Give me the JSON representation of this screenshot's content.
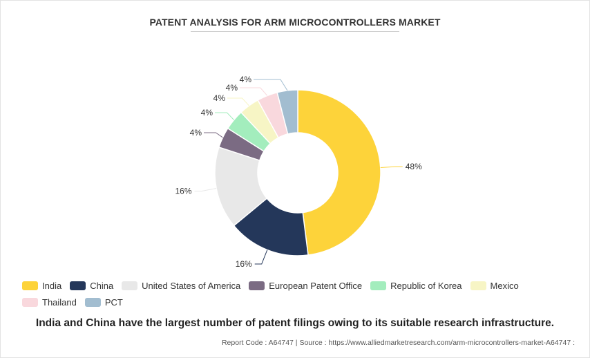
{
  "title": "PATENT ANALYSIS FOR ARM MICROCONTROLLERS MARKET",
  "chart_data": {
    "type": "pie",
    "donut": true,
    "categories": [
      "India",
      "China",
      "United States of America",
      "European Patent Office",
      "Republic of Korea",
      "Mexico",
      "Thailand",
      "PCT"
    ],
    "values": [
      48,
      16,
      16,
      4,
      4,
      4,
      4,
      4
    ],
    "labels": [
      "48%",
      "16%",
      "16%",
      "4%",
      "4%",
      "4%",
      "4%",
      "4%"
    ],
    "colors": [
      "#fdd33a",
      "#24375a",
      "#e8e8e8",
      "#7b6b83",
      "#a3edbd",
      "#f7f5c5",
      "#f9d8dd",
      "#a2bdd0"
    ],
    "legend_position": "bottom"
  },
  "caption": "India and China have the largest number of patent filings owing to its suitable research infrastructure.",
  "source_text": "Report Code : A64747  |  Source : https://www.alliedmarketresearch.com/arm-microcontrollers-market-A64747 :"
}
